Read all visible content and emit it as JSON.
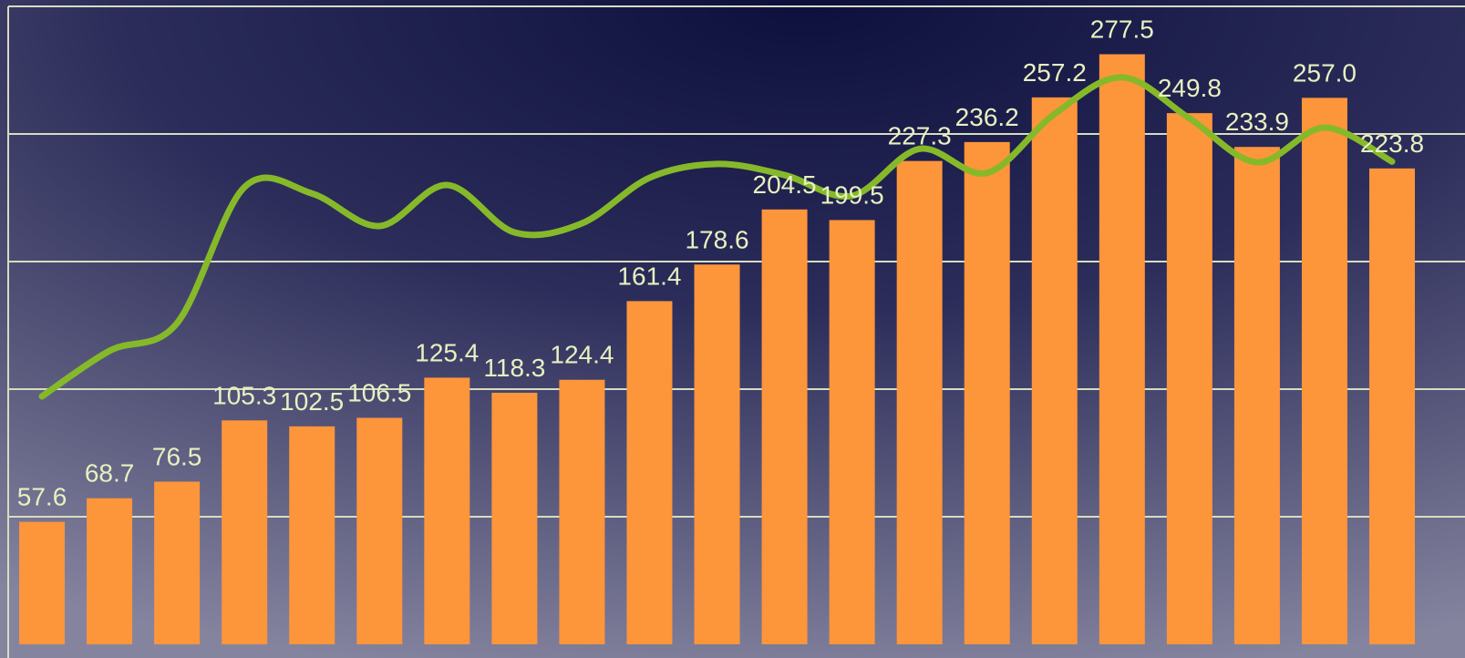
{
  "chart_data": {
    "type": "bar",
    "values": [
      57.6,
      68.7,
      76.5,
      105.3,
      102.5,
      106.5,
      125.4,
      118.3,
      124.4,
      161.4,
      178.6,
      204.5,
      199.5,
      227.3,
      236.2,
      257.2,
      277.5,
      249.8,
      233.9,
      257.0,
      223.8
    ],
    "value_labels": [
      "57.6",
      "68.7",
      "76.5",
      "105.3",
      "102.5",
      "106.5",
      "125.4",
      "118.3",
      "124.4",
      "161.4",
      "178.6",
      "204.5",
      "199.5",
      "227.3",
      "236.2",
      "257.2",
      "277.5",
      "249.8",
      "233.9",
      "257.0",
      "223.8"
    ],
    "color": "#fd953b",
    "line": {
      "type": "line",
      "color": "#86b92a",
      "values": [
        116.6,
        138,
        151,
        215,
        212,
        196.7,
        216,
        193.7,
        198,
        219.4,
        225.9,
        220.7,
        210.9,
        233,
        221.7,
        249.4,
        266.6,
        247.3,
        226.7,
        243,
        227
      ]
    },
    "ylim": [
      0,
      300
    ],
    "yticks": [
      60,
      120,
      180,
      240,
      300
    ],
    "grid": true
  }
}
